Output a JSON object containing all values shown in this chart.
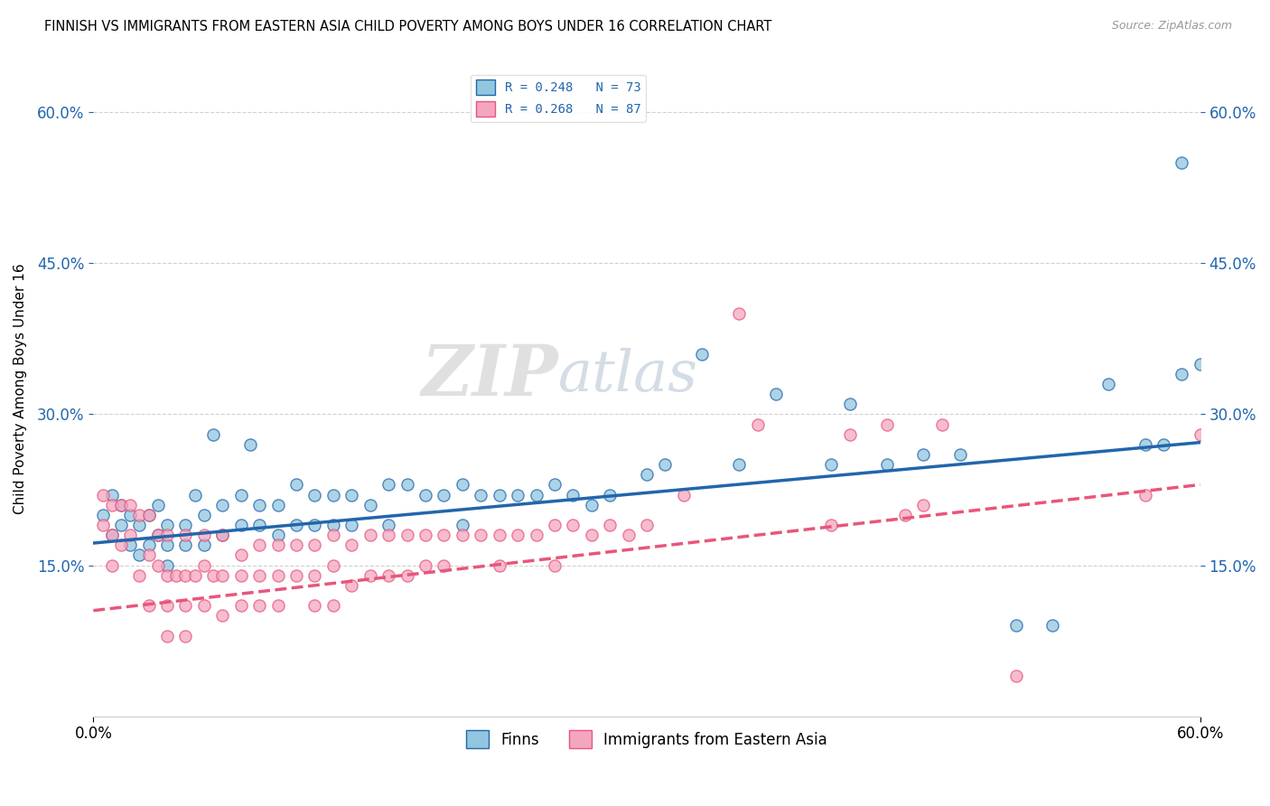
{
  "title": "FINNISH VS IMMIGRANTS FROM EASTERN ASIA CHILD POVERTY AMONG BOYS UNDER 16 CORRELATION CHART",
  "source": "Source: ZipAtlas.com",
  "ylabel": "Child Poverty Among Boys Under 16",
  "xlim": [
    0.0,
    0.6
  ],
  "ylim": [
    0.0,
    0.65
  ],
  "yticks": [
    0.15,
    0.3,
    0.45,
    0.6
  ],
  "ytick_labels": [
    "15.0%",
    "30.0%",
    "45.0%",
    "60.0%"
  ],
  "xtick_labels": [
    "0.0%",
    "60.0%"
  ],
  "legend_label1": "R = 0.248   N = 73",
  "legend_label2": "R = 0.268   N = 87",
  "legend_bottom_label1": "Finns",
  "legend_bottom_label2": "Immigrants from Eastern Asia",
  "color_blue": "#92c5de",
  "color_pink": "#f4a6c0",
  "line_color_blue": "#2166ac",
  "line_color_pink": "#e8567a",
  "watermark_zip": "ZIP",
  "watermark_atlas": "atlas",
  "finns_x": [
    0.005,
    0.01,
    0.01,
    0.015,
    0.015,
    0.02,
    0.02,
    0.025,
    0.025,
    0.03,
    0.03,
    0.035,
    0.035,
    0.04,
    0.04,
    0.04,
    0.05,
    0.05,
    0.055,
    0.06,
    0.06,
    0.065,
    0.07,
    0.07,
    0.08,
    0.08,
    0.085,
    0.09,
    0.09,
    0.1,
    0.1,
    0.11,
    0.11,
    0.12,
    0.12,
    0.13,
    0.13,
    0.14,
    0.14,
    0.15,
    0.16,
    0.16,
    0.17,
    0.18,
    0.19,
    0.2,
    0.2,
    0.21,
    0.22,
    0.23,
    0.24,
    0.25,
    0.26,
    0.27,
    0.28,
    0.3,
    0.31,
    0.33,
    0.35,
    0.37,
    0.4,
    0.41,
    0.43,
    0.45,
    0.47,
    0.5,
    0.52,
    0.55,
    0.57,
    0.58,
    0.59,
    0.59,
    0.6
  ],
  "finns_y": [
    0.2,
    0.22,
    0.18,
    0.21,
    0.19,
    0.2,
    0.17,
    0.19,
    0.16,
    0.2,
    0.17,
    0.21,
    0.18,
    0.19,
    0.17,
    0.15,
    0.19,
    0.17,
    0.22,
    0.2,
    0.17,
    0.28,
    0.21,
    0.18,
    0.22,
    0.19,
    0.27,
    0.21,
    0.19,
    0.21,
    0.18,
    0.23,
    0.19,
    0.22,
    0.19,
    0.22,
    0.19,
    0.22,
    0.19,
    0.21,
    0.23,
    0.19,
    0.23,
    0.22,
    0.22,
    0.23,
    0.19,
    0.22,
    0.22,
    0.22,
    0.22,
    0.23,
    0.22,
    0.21,
    0.22,
    0.24,
    0.25,
    0.36,
    0.25,
    0.32,
    0.25,
    0.31,
    0.25,
    0.26,
    0.26,
    0.09,
    0.09,
    0.33,
    0.27,
    0.27,
    0.55,
    0.34,
    0.35
  ],
  "immigrants_x": [
    0.005,
    0.005,
    0.01,
    0.01,
    0.01,
    0.015,
    0.015,
    0.02,
    0.02,
    0.025,
    0.025,
    0.03,
    0.03,
    0.03,
    0.035,
    0.035,
    0.04,
    0.04,
    0.04,
    0.04,
    0.045,
    0.05,
    0.05,
    0.05,
    0.05,
    0.055,
    0.06,
    0.06,
    0.06,
    0.065,
    0.07,
    0.07,
    0.07,
    0.08,
    0.08,
    0.08,
    0.09,
    0.09,
    0.09,
    0.1,
    0.1,
    0.1,
    0.11,
    0.11,
    0.12,
    0.12,
    0.12,
    0.13,
    0.13,
    0.13,
    0.14,
    0.14,
    0.15,
    0.15,
    0.16,
    0.16,
    0.17,
    0.17,
    0.18,
    0.18,
    0.19,
    0.19,
    0.2,
    0.21,
    0.22,
    0.22,
    0.23,
    0.24,
    0.25,
    0.25,
    0.26,
    0.27,
    0.28,
    0.29,
    0.3,
    0.32,
    0.35,
    0.36,
    0.4,
    0.41,
    0.43,
    0.44,
    0.45,
    0.46,
    0.5,
    0.57,
    0.6
  ],
  "immigrants_y": [
    0.22,
    0.19,
    0.21,
    0.18,
    0.15,
    0.21,
    0.17,
    0.21,
    0.18,
    0.2,
    0.14,
    0.2,
    0.16,
    0.11,
    0.18,
    0.15,
    0.18,
    0.14,
    0.11,
    0.08,
    0.14,
    0.18,
    0.14,
    0.11,
    0.08,
    0.14,
    0.18,
    0.15,
    0.11,
    0.14,
    0.18,
    0.14,
    0.1,
    0.16,
    0.14,
    0.11,
    0.17,
    0.14,
    0.11,
    0.17,
    0.14,
    0.11,
    0.17,
    0.14,
    0.17,
    0.14,
    0.11,
    0.18,
    0.15,
    0.11,
    0.17,
    0.13,
    0.18,
    0.14,
    0.18,
    0.14,
    0.18,
    0.14,
    0.18,
    0.15,
    0.18,
    0.15,
    0.18,
    0.18,
    0.18,
    0.15,
    0.18,
    0.18,
    0.19,
    0.15,
    0.19,
    0.18,
    0.19,
    0.18,
    0.19,
    0.22,
    0.4,
    0.29,
    0.19,
    0.28,
    0.29,
    0.2,
    0.21,
    0.29,
    0.04,
    0.22,
    0.28
  ],
  "finns_line_x0": 0.0,
  "finns_line_y0": 0.172,
  "finns_line_x1": 0.6,
  "finns_line_y1": 0.272,
  "immig_line_x0": 0.0,
  "immig_line_y0": 0.105,
  "immig_line_x1": 0.6,
  "immig_line_y1": 0.23
}
